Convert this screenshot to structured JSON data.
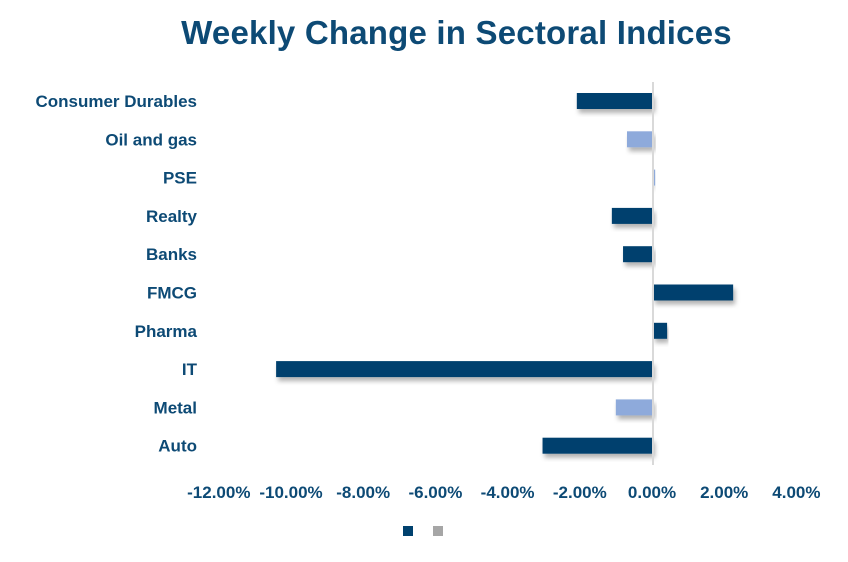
{
  "chart_data": {
    "type": "bar",
    "orientation": "horizontal",
    "title": "Weekly Change in Sectoral Indices",
    "xlabel": "",
    "ylabel": "",
    "categories": [
      "Consumer Durables",
      "Oil and gas",
      "PSE",
      "Realty",
      "Banks",
      "FMCG",
      "Pharma",
      "IT",
      "Metal",
      "Auto"
    ],
    "values": [
      -2.11,
      -0.72,
      0.06,
      -1.14,
      -0.83,
      2.22,
      0.39,
      -10.44,
      -1.03,
      -3.06
    ],
    "value_unit": "%",
    "bar_colors": [
      "#00416e",
      "#8eaadb",
      "#8eaadb",
      "#00416e",
      "#00416e",
      "#00416e",
      "#00416e",
      "#00416e",
      "#8eaadb",
      "#00416e"
    ],
    "xlim": [
      -12,
      4
    ],
    "xticks": [
      -12,
      -10,
      -8,
      -6,
      -4,
      -2,
      0,
      2,
      4
    ],
    "xtick_labels": [
      "-12.00%",
      "-10.00%",
      "-8.00%",
      "-6.00%",
      "-4.00%",
      "-2.00%",
      "0.00%",
      "2.00%",
      "4.00%"
    ],
    "grid": false,
    "legend": {
      "placement": "bottom",
      "entries": [
        {
          "label": "",
          "color": "#00416e"
        },
        {
          "label": "",
          "color": "#a6a6a6"
        }
      ]
    }
  },
  "colors": {
    "text": "#0d4a75",
    "axis_line": "#d9d9d9"
  }
}
